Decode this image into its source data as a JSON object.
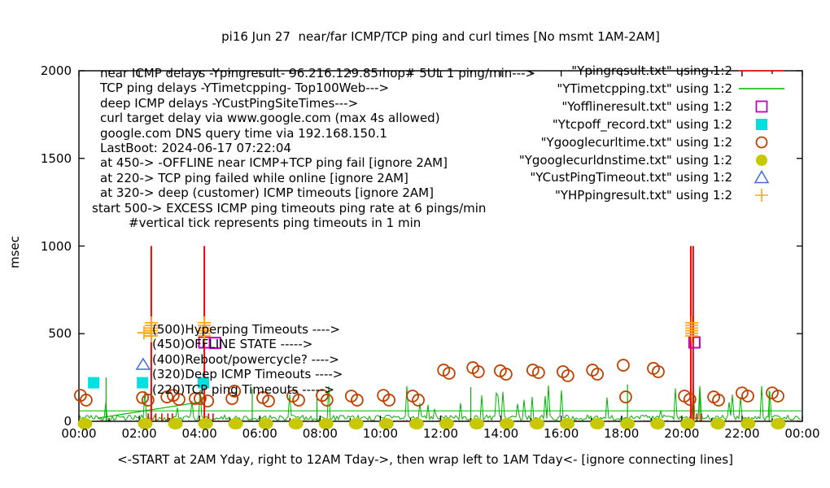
{
  "title": "pi16 Jun 27  near/far ICMP/TCP ping and curl times [No msmt 1AM-2AM]",
  "ylabel": "msec",
  "xlabel": "<-START at 2AM Yday, right to 12AM Tday->, then wrap left to 1AM Tday<- [ignore connecting lines]",
  "info_lines": [
    {
      "x": 123,
      "text": "near ICMP delays -Ypingresult- 96.216.129.85 hop# 5UL 1 ping/min--->"
    },
    {
      "x": 123,
      "text": "TCP ping delays -YTimetcpping- Top100Web--->"
    },
    {
      "x": 123,
      "text": "deep ICMP delays -YCustPingSiteTimes--->"
    },
    {
      "x": 123,
      "text": "curl target delay via www.google.com (max 4s allowed)"
    },
    {
      "x": 123,
      "text": "google.com DNS query time via 192.168.150.1"
    },
    {
      "x": 123,
      "text": "LastBoot: 2024-06-17 07:22:04"
    },
    {
      "x": 123,
      "text": "at 450-> -OFFLINE near ICMP+TCP ping fail [ignore 2AM]"
    },
    {
      "x": 123,
      "text": "at 220-> TCP ping failed while online [ignore 2AM]"
    },
    {
      "x": 123,
      "text": "at 320-> deep (customer) ICMP timeouts [ignore 2AM]"
    },
    {
      "x": 113,
      "text": "start 500-> EXCESS ICMP ping timeouts ping rate at 6 pings/min"
    },
    {
      "x": 158,
      "text": "#vertical tick represents ping timeouts in 1 min"
    }
  ],
  "annotations": [
    "(500)Hyperping Timeouts ---->",
    "(450)OFFLINE STATE ----->",
    "(400)Reboot/powercycle? ---->",
    "(320)Deep ICMP Timeouts ---->",
    "(220)TCP ping Timeouts ----->"
  ],
  "legend": [
    {
      "label": "\"Ypingresult.txt\" using 1:2",
      "marker": "line",
      "color": "#ff0000"
    },
    {
      "label": "\"YTimetcpping.txt\" using 1:2",
      "marker": "line",
      "color": "#00b400"
    },
    {
      "label": "\"Yofflineresult.txt\" using 1:2",
      "marker": "open-square",
      "color": "#c000c0"
    },
    {
      "label": "\"Ytcpoff_record.txt\" using 1:2",
      "marker": "filled-square",
      "color": "#00e0e0"
    },
    {
      "label": "\"Ygooglecurltime.txt\" using 1:2",
      "marker": "open-circle",
      "color": "#c04000"
    },
    {
      "label": "\"Ygooglecurldnstime.txt\" using 1:2",
      "marker": "filled-circle",
      "color": "#c8c800"
    },
    {
      "label": "\"YCustPingTimeout.txt\" using 1:2",
      "marker": "open-triangle",
      "color": "#4169e1"
    },
    {
      "label": "\"YHPpingresult.txt\" using 1:2",
      "marker": "plus",
      "color": "#ffa520"
    }
  ],
  "chart_data": {
    "type": "line+scatter",
    "title": "pi16 Jun 27  near/far ICMP/TCP ping and curl times [No msmt 1AM-2AM]",
    "xlabel": "<-START at 2AM Yday, right to 12AM Tday->, then wrap left to 1AM Tday<- [ignore connecting lines]",
    "ylabel": "msec",
    "x_hours_range": [
      0,
      24
    ],
    "ylim": [
      0,
      2000
    ],
    "grid": false,
    "legend_position": "top-right",
    "x_tick_labels": [
      "00:00",
      "02:00",
      "04:00",
      "06:00",
      "08:00",
      "10:00",
      "12:00",
      "14:00",
      "16:00",
      "18:00",
      "20:00",
      "22:00",
      "00:00"
    ],
    "y_tick_values": [
      0,
      500,
      1000,
      1500,
      2000
    ],
    "series": [
      {
        "name": "Ypingresult.txt",
        "style": "red impulse line",
        "color": "#ff0000",
        "baseline_msec": 4,
        "spike_hours": [
          2.4,
          4.16,
          20.3,
          20.38
        ],
        "spike_msec": 1000,
        "timeout_tick_hours": [
          2.3,
          2.55,
          2.75,
          2.95,
          3.1,
          4.3,
          4.45,
          20.5,
          20.65
        ],
        "timeout_tick_msec": 45
      },
      {
        "name": "YTimetcpping.txt",
        "style": "green noisy line",
        "color": "#00b400",
        "noise_seed": 7,
        "noise_base_msec": 4,
        "noise_span_msec": 32,
        "spike_chance": 0.08,
        "spike_min_msec": 60,
        "spike_max_msec": 215,
        "level_line_msec": 60,
        "connecting_line": [
          [
            0.62,
            18
          ],
          [
            4.08,
            111
          ]
        ],
        "tall_spikes": [
          [
            0.9,
            250
          ],
          [
            5.75,
            185
          ],
          [
            7.9,
            170
          ],
          [
            13.0,
            195
          ],
          [
            18.2,
            210
          ],
          [
            20.6,
            190
          ],
          [
            22.9,
            175
          ]
        ]
      },
      {
        "name": "Yofflineresult.txt",
        "style": "open square",
        "color": "#c000c0",
        "nominal_msec": 450,
        "points": [
          [
            4.16,
            450
          ],
          [
            4.52,
            447
          ],
          [
            20.42,
            450
          ]
        ]
      },
      {
        "name": "Ytcpoff_record.txt",
        "style": "filled square",
        "color": "#00e0e0",
        "nominal_msec": 220,
        "points": [
          [
            0.49,
            220
          ],
          [
            2.11,
            220
          ],
          [
            4.13,
            220
          ]
        ]
      },
      {
        "name": "Ygooglecurltime.txt",
        "style": "open circle",
        "color": "#c04000",
        "points": [
          [
            0.05,
            148
          ],
          [
            0.24,
            121
          ],
          [
            2.11,
            135
          ],
          [
            2.29,
            121
          ],
          [
            2.92,
            139
          ],
          [
            3.13,
            148
          ],
          [
            3.32,
            125
          ],
          [
            3.86,
            130
          ],
          [
            4.02,
            130
          ],
          [
            4.27,
            116
          ],
          [
            5.08,
            130
          ],
          [
            5.16,
            172
          ],
          [
            6.1,
            135
          ],
          [
            6.29,
            116
          ],
          [
            7.1,
            144
          ],
          [
            7.29,
            121
          ],
          [
            8.07,
            148
          ],
          [
            8.23,
            121
          ],
          [
            9.04,
            144
          ],
          [
            9.23,
            121
          ],
          [
            10.1,
            148
          ],
          [
            10.29,
            121
          ],
          [
            11.07,
            144
          ],
          [
            11.26,
            121
          ],
          [
            12.1,
            292
          ],
          [
            12.28,
            274
          ],
          [
            13.07,
            306
          ],
          [
            13.25,
            283
          ],
          [
            13.98,
            288
          ],
          [
            14.17,
            269
          ],
          [
            15.06,
            292
          ],
          [
            15.25,
            278
          ],
          [
            16.06,
            283
          ],
          [
            16.22,
            260
          ],
          [
            17.04,
            292
          ],
          [
            17.2,
            269
          ],
          [
            18.06,
            320
          ],
          [
            18.14,
            139
          ],
          [
            19.06,
            302
          ],
          [
            19.22,
            283
          ],
          [
            20.09,
            144
          ],
          [
            20.27,
            125
          ],
          [
            21.06,
            139
          ],
          [
            21.22,
            121
          ],
          [
            22.0,
            162
          ],
          [
            22.19,
            144
          ],
          [
            23.0,
            162
          ],
          [
            23.19,
            144
          ]
        ]
      },
      {
        "name": "Ygooglecurldnstime.txt",
        "style": "filled circle at axis",
        "color": "#c8c800",
        "note": "hourly DNS query marks, none during 1AM-2AM",
        "hours": [
          0.2,
          2.2,
          3.2,
          4.2,
          5.2,
          6.2,
          7.2,
          8.2,
          9.2,
          10.2,
          11.2,
          12.2,
          13.2,
          14.2,
          15.2,
          16.2,
          17.2,
          18.2,
          19.2,
          20.2,
          21.2,
          22.2,
          23.2
        ],
        "msec": 0
      },
      {
        "name": "YCustPingTimeout.txt",
        "style": "open triangle",
        "color": "#4169e1",
        "nominal_msec": 320,
        "points": [
          [
            2.13,
            325
          ]
        ]
      },
      {
        "name": "YHPpingresult.txt",
        "style": "orange plus",
        "color": "#ffa520",
        "nominal_msec": 500,
        "points": [
          [
            2.16,
            505
          ]
        ],
        "stack_hours": [
          2.4,
          4.16,
          20.33
        ],
        "stack_msec": [
          487,
          502,
          517,
          532,
          547,
          562
        ]
      }
    ]
  }
}
